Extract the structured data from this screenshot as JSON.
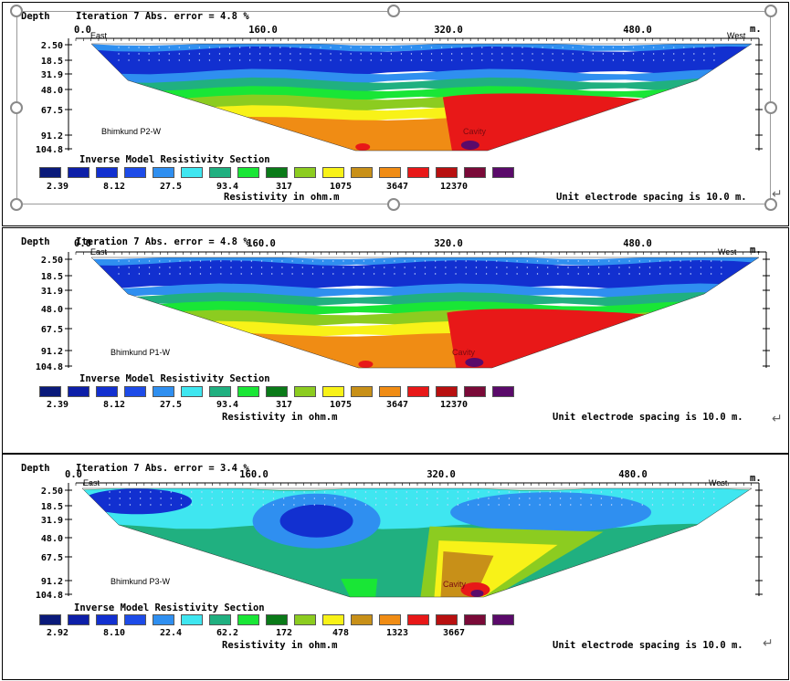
{
  "common": {
    "depth_label": "Depth",
    "x_unit": "m.",
    "east_label": "East",
    "west_label": "West",
    "x_ticks": [
      "0.0",
      "160.0",
      "320.0",
      "480.0"
    ],
    "depth_ticks": [
      "2.50",
      "18.5",
      "31.9",
      "48.0",
      "67.5",
      "91.2",
      "104.8"
    ],
    "section_title": "Inverse Model Resistivity Section",
    "resistivity_label": "Resistivity in ohm.m",
    "electrode_note": "Unit electrode spacing is 10.0 m.",
    "cavity_label": "Cavity",
    "legend_colors": [
      "#0a1a7a",
      "#0d1fa8",
      "#1230d0",
      "#1d4be8",
      "#2f8ff0",
      "#3fe6f0",
      "#20b080",
      "#19e636",
      "#0a7a18",
      "#8ccc20",
      "#f8f218",
      "#c89018",
      "#f08c14",
      "#e81818",
      "#b81010",
      "#7a0a38",
      "#5a0a6a"
    ]
  },
  "panels": [
    {
      "iteration_text": "Iteration 7 Abs. error = 4.8 %",
      "profile_name": "Bhimkund P2-W",
      "legend_values": [
        "2.39",
        "8.12",
        "27.5",
        "93.4",
        "317",
        "1075",
        "3647",
        "12370"
      ],
      "selected": true
    },
    {
      "iteration_text": "Iteration 7 Abs. error = 4.8 %",
      "profile_name": "Bhimkund P1-W",
      "legend_values": [
        "2.39",
        "8.12",
        "27.5",
        "93.4",
        "317",
        "1075",
        "3647",
        "12370"
      ],
      "selected": false
    },
    {
      "iteration_text": "Iteration 7 Abs. error = 3.4 %",
      "profile_name": "Bhimkund P3-W",
      "legend_values": [
        "2.92",
        "8.10",
        "22.4",
        "62.2",
        "172",
        "478",
        "1323",
        "3667"
      ],
      "selected": false
    }
  ]
}
